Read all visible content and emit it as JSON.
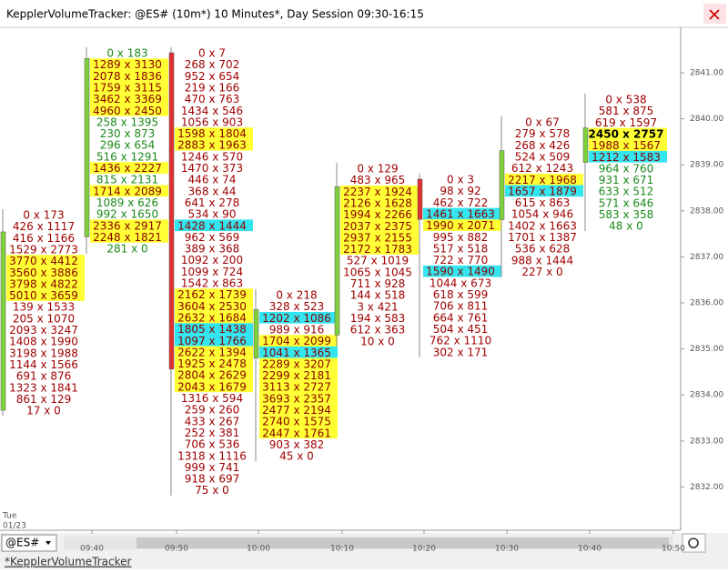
{
  "window": {
    "title": "KepplerVolumeTracker: @ES# (10m*) 10 Minutes*, Day Session 09:30-16:15"
  },
  "columns": [
    {
      "color": "#a00000",
      "rows": [
        "0 x 173",
        "426 x 1117",
        "416 x 1166",
        "1529 x 2773",
        "3770 x 4412",
        "3560 x 3886",
        "3798 x 4822",
        "5010 x 3659",
        "139 x 1533",
        "205 x 1070",
        "2093 x 3247",
        "1408 x 1990",
        "3198 x 1988",
        "1144 x 1566",
        "691 x 876",
        "1323 x 1841",
        "861 x 129",
        "17 x 0"
      ],
      "yellow_rows": [
        4,
        5,
        6,
        7
      ],
      "cyan_rows": []
    },
    {
      "color": "#1a8a1a",
      "rows": [
        "0 x 183",
        "1289 x 3130",
        "2078 x 1836",
        "1759 x 3115",
        "3462 x 3369",
        "4960 x 2450",
        "258 x 1395",
        "230 x 873",
        "296 x 654",
        "516 x 1291",
        "1436 x 2227",
        "815 x 2131",
        "1714 x 2089",
        "1089 x 626",
        "992 x 1650",
        "2336 x 2917",
        "2248 x 1821",
        "281 x 0"
      ],
      "yellow_rows": [
        1,
        2,
        3,
        4,
        5,
        10,
        12,
        15,
        16
      ],
      "cyan_rows": []
    },
    {
      "color": "#a00000",
      "rows": [
        "0 x 7",
        "268 x 702",
        "952 x 654",
        "219 x 166",
        "470 x 763",
        "1434 x 546",
        "1056 x 903",
        "1598 x 1804",
        "2883 x 1963",
        "1246 x 570",
        "1470 x 373",
        "446 x 74",
        "368 x 44",
        "641 x 278",
        "534 x 90",
        "1428 x 1444",
        "962 x 569",
        "389 x 368",
        "1092 x 200",
        "1099 x 724",
        "1542 x 863",
        "2162 x 1739",
        "3604 x 2530",
        "2632 x 1684",
        "1805 x 1438",
        "1097 x 1766",
        "2622 x 1394",
        "1925 x 2478",
        "2804 x 2629",
        "2043 x 1679",
        "1316 x 594",
        "259 x 260",
        "433 x 267",
        "252 x 381",
        "706 x 536",
        "1318 x 1116",
        "999 x 741",
        "918 x 697",
        "75 x 0"
      ],
      "yellow_rows": [
        7,
        8,
        21,
        22,
        23,
        26,
        27,
        28,
        29
      ],
      "cyan_rows": [
        15,
        24,
        25
      ]
    },
    {
      "color": "#a00000",
      "rows": [
        "0 x 218",
        "328 x 523",
        "1202 x 1086",
        "989 x 916",
        "1704 x 2099",
        "1041 x 1365",
        "2289 x 3207",
        "2299 x 2181",
        "3113 x 2727",
        "3693 x 2357",
        "2477 x 2194",
        "2740 x 1575",
        "2447 x 1761",
        "903 x 382",
        "45 x 0"
      ],
      "yellow_rows": [
        4,
        6,
        7,
        8,
        9,
        10,
        11,
        12
      ],
      "cyan_rows": [
        2,
        5
      ]
    },
    {
      "color": "#a00000",
      "rows": [
        "0 x 129",
        "483 x 965",
        "2237 x 1924",
        "2126 x 1628",
        "1994 x 2266",
        "2037 x 2375",
        "2937 x 2155",
        "2172 x 1783",
        "527 x 1019",
        "1065 x 1045",
        "711 x 928",
        "144 x 518",
        "3 x 421",
        "194 x 583",
        "612 x 363",
        "10 x 0"
      ],
      "yellow_rows": [
        2,
        3,
        4,
        5,
        6,
        7
      ],
      "cyan_rows": []
    },
    {
      "color": "#a00000",
      "rows": [
        "0 x 3",
        "98 x 92",
        "462 x 722",
        "1461 x 1663",
        "1990 x 2071",
        "995 x 882",
        "517 x 518",
        "722 x 770",
        "1590 x 1490",
        "1044 x 673",
        "618 x 599",
        "706 x 811",
        "664 x 761",
        "504 x 451",
        "762 x 1110",
        "302 x 171"
      ],
      "yellow_rows": [
        4
      ],
      "cyan_rows": [
        3,
        8
      ]
    },
    {
      "color": "#a00000",
      "rows": [
        "0 x 67",
        "279 x 578",
        "268 x 426",
        "524 x 509",
        "612 x 1243",
        "2217 x 1968",
        "1657 x 1879",
        "615 x 863",
        "1054 x 946",
        "1402 x 1663",
        "1701 x 1387",
        "536 x 628",
        "988 x 1444",
        "227 x 0"
      ],
      "yellow_rows": [
        5
      ],
      "cyan_rows": [
        6
      ]
    },
    {
      "color": [
        "#a00000",
        "#a00000",
        "#a00000",
        "#000000",
        "#1a8a1a",
        "#1a8a1a",
        "#1a8a1a",
        "#1a8a1a",
        "#1a8a1a",
        "#1a8a1a",
        "#1a8a1a",
        "#1a8a1a"
      ],
      "rows": [
        "0 x 538",
        "581 x 875",
        "619 x 1597",
        "2450 x 2757",
        "1988 x 1567",
        "1212 x 1583",
        "964 x 760",
        "931 x 671",
        "633 x 512",
        "571 x 646",
        "583 x 358",
        "48 x 0"
      ],
      "yellow_rows": [
        3,
        4
      ],
      "cyan_rows": [
        5
      ],
      "bold_rows": [
        3
      ]
    }
  ],
  "price_axis": {
    "labels": [
      "2841.00",
      "2840.00",
      "2839.00",
      "2838.00",
      "2837.00",
      "2836.00",
      "2835.00",
      "2834.00",
      "2833.00",
      "2832.00"
    ]
  },
  "time_axis": {
    "labels": [
      "09:40",
      "09:50",
      "10:00",
      "10:10",
      "10:20",
      "10:30",
      "10:40",
      "10:50"
    ]
  },
  "date": {
    "day": "Tue",
    "date": "01/23"
  },
  "instrument": "@ES#",
  "tab": "*KepplerVolumeTracker"
}
